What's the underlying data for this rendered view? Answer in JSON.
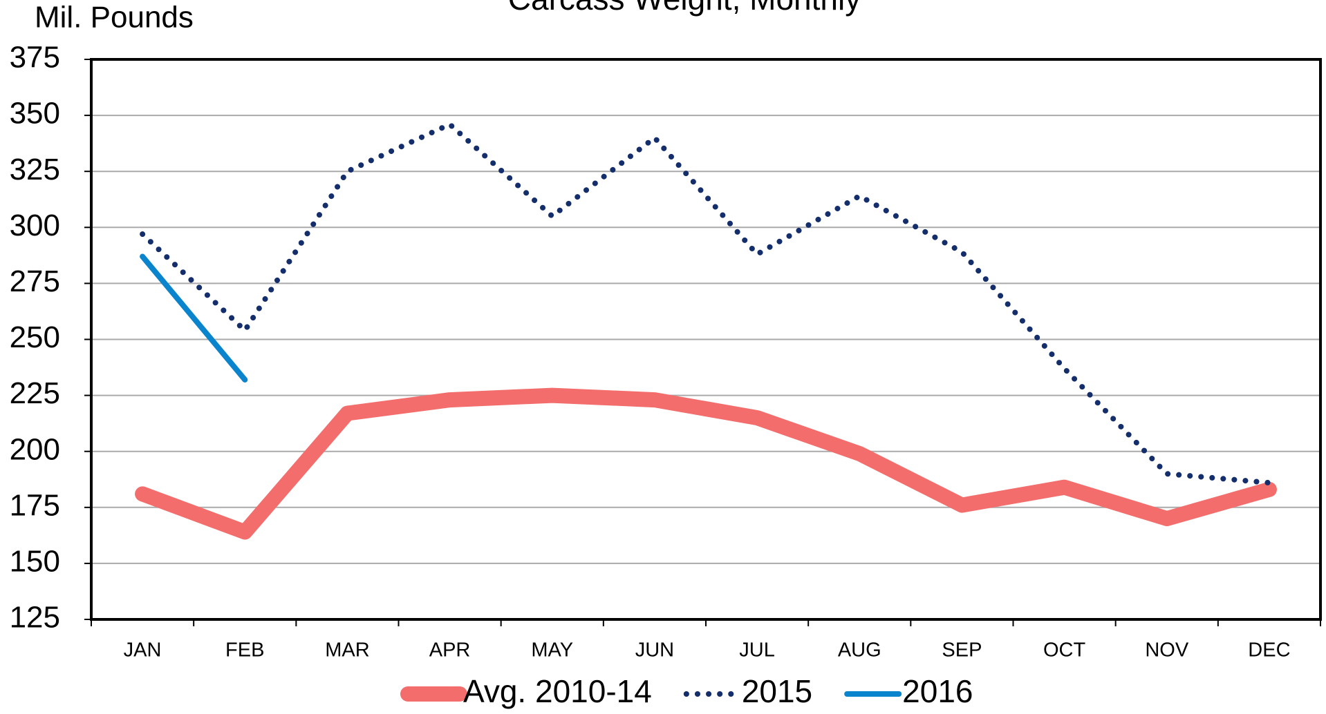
{
  "chart_data": {
    "type": "line",
    "title": "Carcass Weight, Monthly",
    "ylabel": "Mil. Pounds",
    "categories": [
      "JAN",
      "FEB",
      "MAR",
      "APR",
      "MAY",
      "JUN",
      "JUL",
      "AUG",
      "SEP",
      "OCT",
      "NOV",
      "DEC"
    ],
    "series": [
      {
        "name": "Avg. 2010-14",
        "color": "#f26d6b",
        "style": "solid",
        "width": 22,
        "values": [
          181,
          164,
          217,
          223,
          225,
          223,
          215,
          199,
          176,
          184,
          170,
          183
        ]
      },
      {
        "name": "2015",
        "color": "#142e6b",
        "style": "dotted",
        "width": 8,
        "values": [
          297,
          254,
          325,
          346,
          305,
          340,
          288,
          314,
          289,
          237,
          190,
          186
        ]
      },
      {
        "name": "2016",
        "color": "#0a84cc",
        "style": "solid",
        "width": 8,
        "values": [
          287,
          232,
          null,
          null,
          null,
          null,
          null,
          null,
          null,
          null,
          null,
          null
        ]
      }
    ],
    "ylim": [
      125,
      375
    ],
    "yticks": [
      125,
      150,
      175,
      200,
      225,
      250,
      275,
      300,
      325,
      350,
      375
    ],
    "grid": true,
    "legend": "bottom"
  }
}
